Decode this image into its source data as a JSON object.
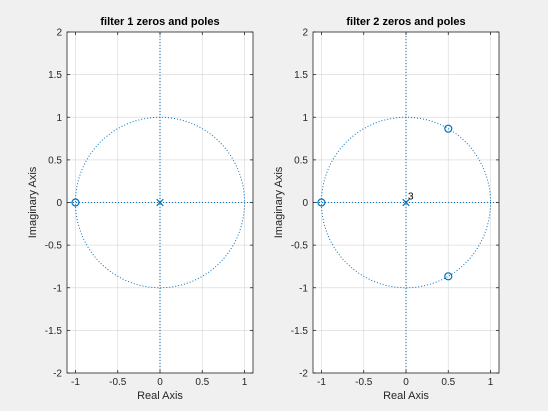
{
  "chart_data": [
    {
      "type": "scatter",
      "subtype": "pole-zero",
      "title": "filter 1 zeros and poles",
      "xlabel": "Real Axis",
      "ylabel": "Imaginary Axis",
      "xlim": [
        -1.1,
        1.1
      ],
      "ylim": [
        -2,
        2
      ],
      "xticks": [
        "-1",
        "-0.5",
        "0",
        "0.5",
        "1"
      ],
      "yticks": [
        "-2",
        "-1.5",
        "-1",
        "-0.5",
        "0",
        "0.5",
        "1",
        "1.5",
        "2"
      ],
      "grid": true,
      "unit_circle": true,
      "zeros": [
        {
          "x": -1,
          "y": 0
        }
      ],
      "poles": [
        {
          "x": 0,
          "y": 0
        }
      ],
      "annotations": [],
      "colors": {
        "marker": "#0072bd",
        "background": "#ffffff",
        "grid": "#dcdcdc"
      }
    },
    {
      "type": "scatter",
      "subtype": "pole-zero",
      "title": "filter 2 zeros and poles",
      "xlabel": "Real Axis",
      "ylabel": "Imaginary Axis",
      "xlim": [
        -1.1,
        1.1
      ],
      "ylim": [
        -2,
        2
      ],
      "xticks": [
        "-1",
        "-0.5",
        "0",
        "0.5",
        "1"
      ],
      "yticks": [
        "-2",
        "-1.5",
        "-1",
        "-0.5",
        "0",
        "0.5",
        "1",
        "1.5",
        "2"
      ],
      "grid": true,
      "unit_circle": true,
      "zeros": [
        {
          "x": -1,
          "y": 0
        },
        {
          "x": 0.5,
          "y": 0.866
        },
        {
          "x": 0.5,
          "y": -0.866
        }
      ],
      "poles": [
        {
          "x": 0,
          "y": 0
        }
      ],
      "annotations": [
        {
          "x": 0,
          "y": 0,
          "text": "3"
        }
      ],
      "colors": {
        "marker": "#0072bd",
        "background": "#ffffff",
        "grid": "#dcdcdc"
      }
    }
  ]
}
